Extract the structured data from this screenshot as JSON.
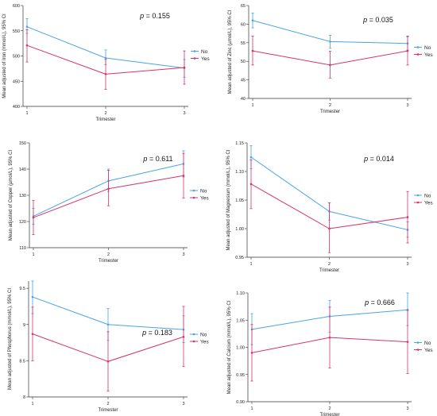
{
  "chart_data": [
    {
      "type": "line",
      "ylabel": "Mean adjusted of Iron (mmol/L), 95% CI",
      "xlabel": "Trimester",
      "annotation": "= 0.155",
      "x": [
        1,
        2,
        3
      ],
      "ylim": [
        400,
        600
      ],
      "yticks": [
        400,
        450,
        500,
        550,
        600
      ],
      "series": [
        {
          "name": "No",
          "values": [
            558,
            496,
            476
          ],
          "lower": [
            545,
            483,
            458
          ],
          "upper": [
            574,
            512,
            493
          ],
          "color": "#4aa3e8"
        },
        {
          "name": "Yes",
          "values": [
            521,
            464,
            477
          ],
          "lower": [
            488,
            434,
            444
          ],
          "upper": [
            552,
            493,
            510
          ],
          "color": "#d6336c"
        }
      ],
      "legend_position": "right"
    },
    {
      "type": "line",
      "ylabel": "Mean adjusted of Zinc (µmol/L), 95% CI",
      "xlabel": "Trimester",
      "annotation": "= 0.035",
      "x": [
        1,
        2,
        3
      ],
      "ylim": [
        40,
        65
      ],
      "yticks": [
        40,
        45,
        50,
        55,
        60,
        65
      ],
      "series": [
        {
          "name": "No",
          "values": [
            61,
            55.3,
            54.8
          ],
          "lower": [
            59,
            53.5,
            53
          ],
          "upper": [
            63,
            57,
            56.6
          ],
          "color": "#4aa3e8"
        },
        {
          "name": "Yes",
          "values": [
            52.8,
            49,
            52.8
          ],
          "lower": [
            49,
            45.5,
            49
          ],
          "upper": [
            56.8,
            52.7,
            56.8
          ],
          "color": "#d6336c"
        }
      ],
      "legend_position": "right"
    },
    {
      "type": "line",
      "ylabel": "Mean adjusted of Copper (µmol/L), 95% CI",
      "xlabel": "Trimester",
      "annotation": "= 0.611",
      "x": [
        1,
        2,
        3
      ],
      "ylim": [
        110,
        150
      ],
      "yticks": [
        110,
        120,
        130,
        140,
        150
      ],
      "series": [
        {
          "name": "No",
          "values": [
            122,
            135.5,
            142
          ],
          "lower": [
            119,
            131.5,
            137
          ],
          "upper": [
            125,
            140,
            147
          ],
          "color": "#4aa3e8"
        },
        {
          "name": "Yes",
          "values": [
            121.5,
            132.5,
            137.5
          ],
          "lower": [
            115,
            126,
            129
          ],
          "upper": [
            128,
            139.5,
            146
          ],
          "color": "#d6336c"
        }
      ],
      "legend_position": "right"
    },
    {
      "type": "line",
      "ylabel": "Mean adjusted of Magnesium (mmol/L), 95% CI",
      "xlabel": "Trimester",
      "annotation": "= 0.014",
      "x": [
        1,
        2,
        3
      ],
      "ylim": [
        0.95,
        1.15
      ],
      "yticks": [
        0.95,
        1.0,
        1.05,
        1.1,
        1.15
      ],
      "ytick_labels": [
        "0.95",
        "1.00",
        "1.05",
        "1.10",
        "1.15"
      ],
      "series": [
        {
          "name": "No",
          "values": [
            1.125,
            1.03,
            0.998
          ],
          "lower": [
            1.105,
            1.015,
            0.985
          ],
          "upper": [
            1.145,
            1.045,
            1.012
          ],
          "color": "#4aa3e8"
        },
        {
          "name": "Yes",
          "values": [
            1.078,
            1.0,
            1.02
          ],
          "lower": [
            1.035,
            0.958,
            0.975
          ],
          "upper": [
            1.12,
            1.045,
            1.065
          ],
          "color": "#d6336c"
        }
      ],
      "legend_position": "right"
    },
    {
      "type": "line",
      "ylabel": "Mean adjusted of Phosphorus (mmol/L), 95% CI",
      "xlabel": "Trimester",
      "annotation": "= 0.183",
      "x": [
        1,
        2,
        3
      ],
      "ylim": [
        8,
        9.6
      ],
      "yticks": [
        8,
        8.5,
        9,
        9.5
      ],
      "ytick_labels": [
        "8",
        "8.5",
        "9",
        "9.5"
      ],
      "series": [
        {
          "name": "No",
          "values": [
            9.38,
            9.0,
            8.93
          ],
          "lower": [
            9.15,
            8.78,
            8.75
          ],
          "upper": [
            9.6,
            9.22,
            9.12
          ],
          "color": "#4aa3e8"
        },
        {
          "name": "Yes",
          "values": [
            8.87,
            8.49,
            8.83
          ],
          "lower": [
            8.5,
            8.08,
            8.42
          ],
          "upper": [
            9.24,
            8.9,
            9.25
          ],
          "color": "#d6336c"
        }
      ],
      "legend_position": "right"
    },
    {
      "type": "line",
      "ylabel": "Mean adjusted of Calcium (mmol/L), 95% CI",
      "xlabel": "Trimester",
      "annotation": "= 0.666",
      "x": [
        1,
        2,
        3
      ],
      "ylim": [
        0.9,
        1.1
      ],
      "yticks": [
        0.9,
        0.95,
        1.0,
        1.05,
        1.1
      ],
      "ytick_labels": [
        "0.90",
        "0.95",
        "1.00",
        "1.05",
        "1.10"
      ],
      "series": [
        {
          "name": "No",
          "values": [
            1.033,
            1.057,
            1.069
          ],
          "lower": [
            1.005,
            1.028,
            1.04
          ],
          "upper": [
            1.062,
            1.086,
            1.1
          ],
          "color": "#4aa3e8"
        },
        {
          "name": "Yes",
          "values": [
            0.99,
            1.018,
            1.01
          ],
          "lower": [
            0.938,
            0.962,
            0.952
          ],
          "upper": [
            1.042,
            1.074,
            1.068
          ],
          "color": "#d6336c"
        }
      ],
      "legend_position": "right"
    }
  ]
}
